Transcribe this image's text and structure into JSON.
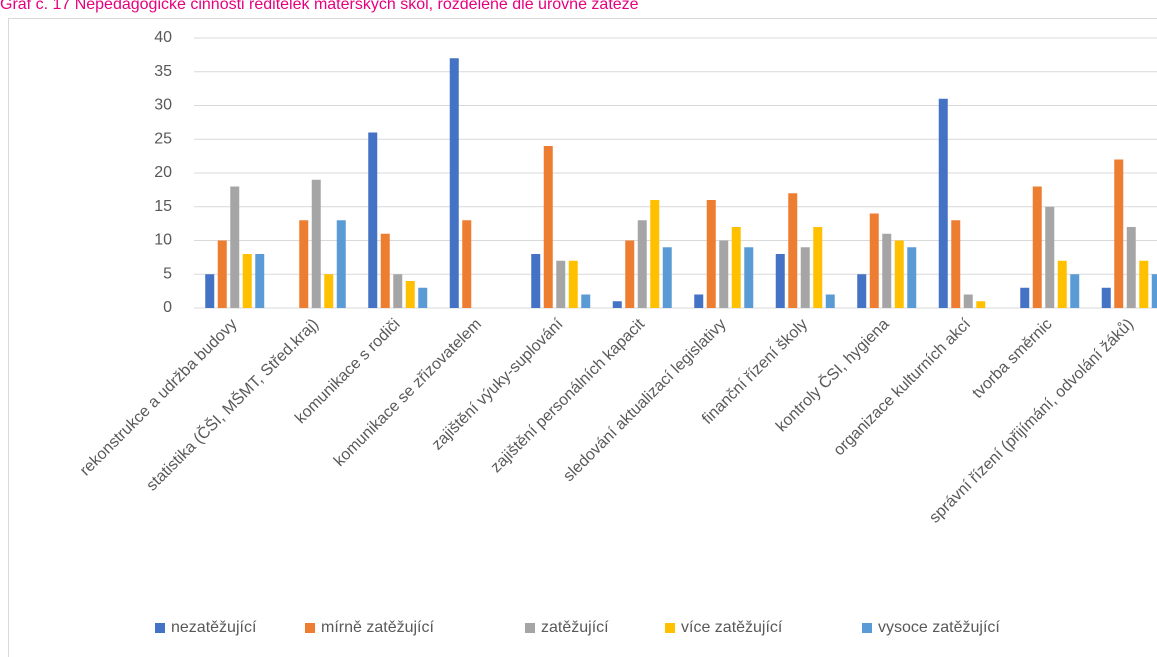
{
  "chart_data": {
    "type": "bar",
    "title": "Graf č. 17 Nepedagogické činnosti ředitelek mateřských škol, rozdělené dle úrovně zátěže",
    "categories": [
      "rekonstrukce a udržba budovy",
      "statistika (ČŠI, MŠMT, Střed.kraj)",
      "komunikace s rodiči",
      "komunikace se zřizovatelem",
      "zajištění výuky-suplování",
      "zajištění personálních kapacit",
      "sledování aktualizací legislativy",
      "finanční řízení školy",
      "kontroly ČSI, hygiena",
      "organizace kulturních akcí",
      "tvorba směrnic",
      "správní řízení (přijímání, odvolání žáků)"
    ],
    "series": [
      {
        "name": "nezatěžující",
        "color": "#4472c4",
        "values": [
          5,
          0,
          26,
          37,
          8,
          1,
          2,
          8,
          5,
          31,
          3,
          3
        ]
      },
      {
        "name": "mírně zatěžující",
        "color": "#ed7d31",
        "values": [
          10,
          13,
          11,
          13,
          24,
          10,
          16,
          17,
          14,
          13,
          18,
          22
        ]
      },
      {
        "name": "zatěžující",
        "color": "#a5a5a5",
        "values": [
          18,
          19,
          5,
          0,
          7,
          13,
          10,
          9,
          11,
          2,
          15,
          12
        ]
      },
      {
        "name": "více zatěžující",
        "color": "#ffc000",
        "values": [
          8,
          5,
          4,
          0,
          7,
          16,
          12,
          12,
          10,
          1,
          7,
          7
        ]
      },
      {
        "name": "vysoce zatěžující",
        "color": "#5b9bd5",
        "values": [
          8,
          13,
          3,
          0,
          2,
          9,
          9,
          2,
          9,
          0,
          5,
          5
        ]
      }
    ],
    "ylim": [
      0,
      40
    ],
    "yticks": [
      0,
      5,
      10,
      15,
      20,
      25,
      30,
      35,
      40
    ],
    "grid": true,
    "legend": "bottom"
  }
}
